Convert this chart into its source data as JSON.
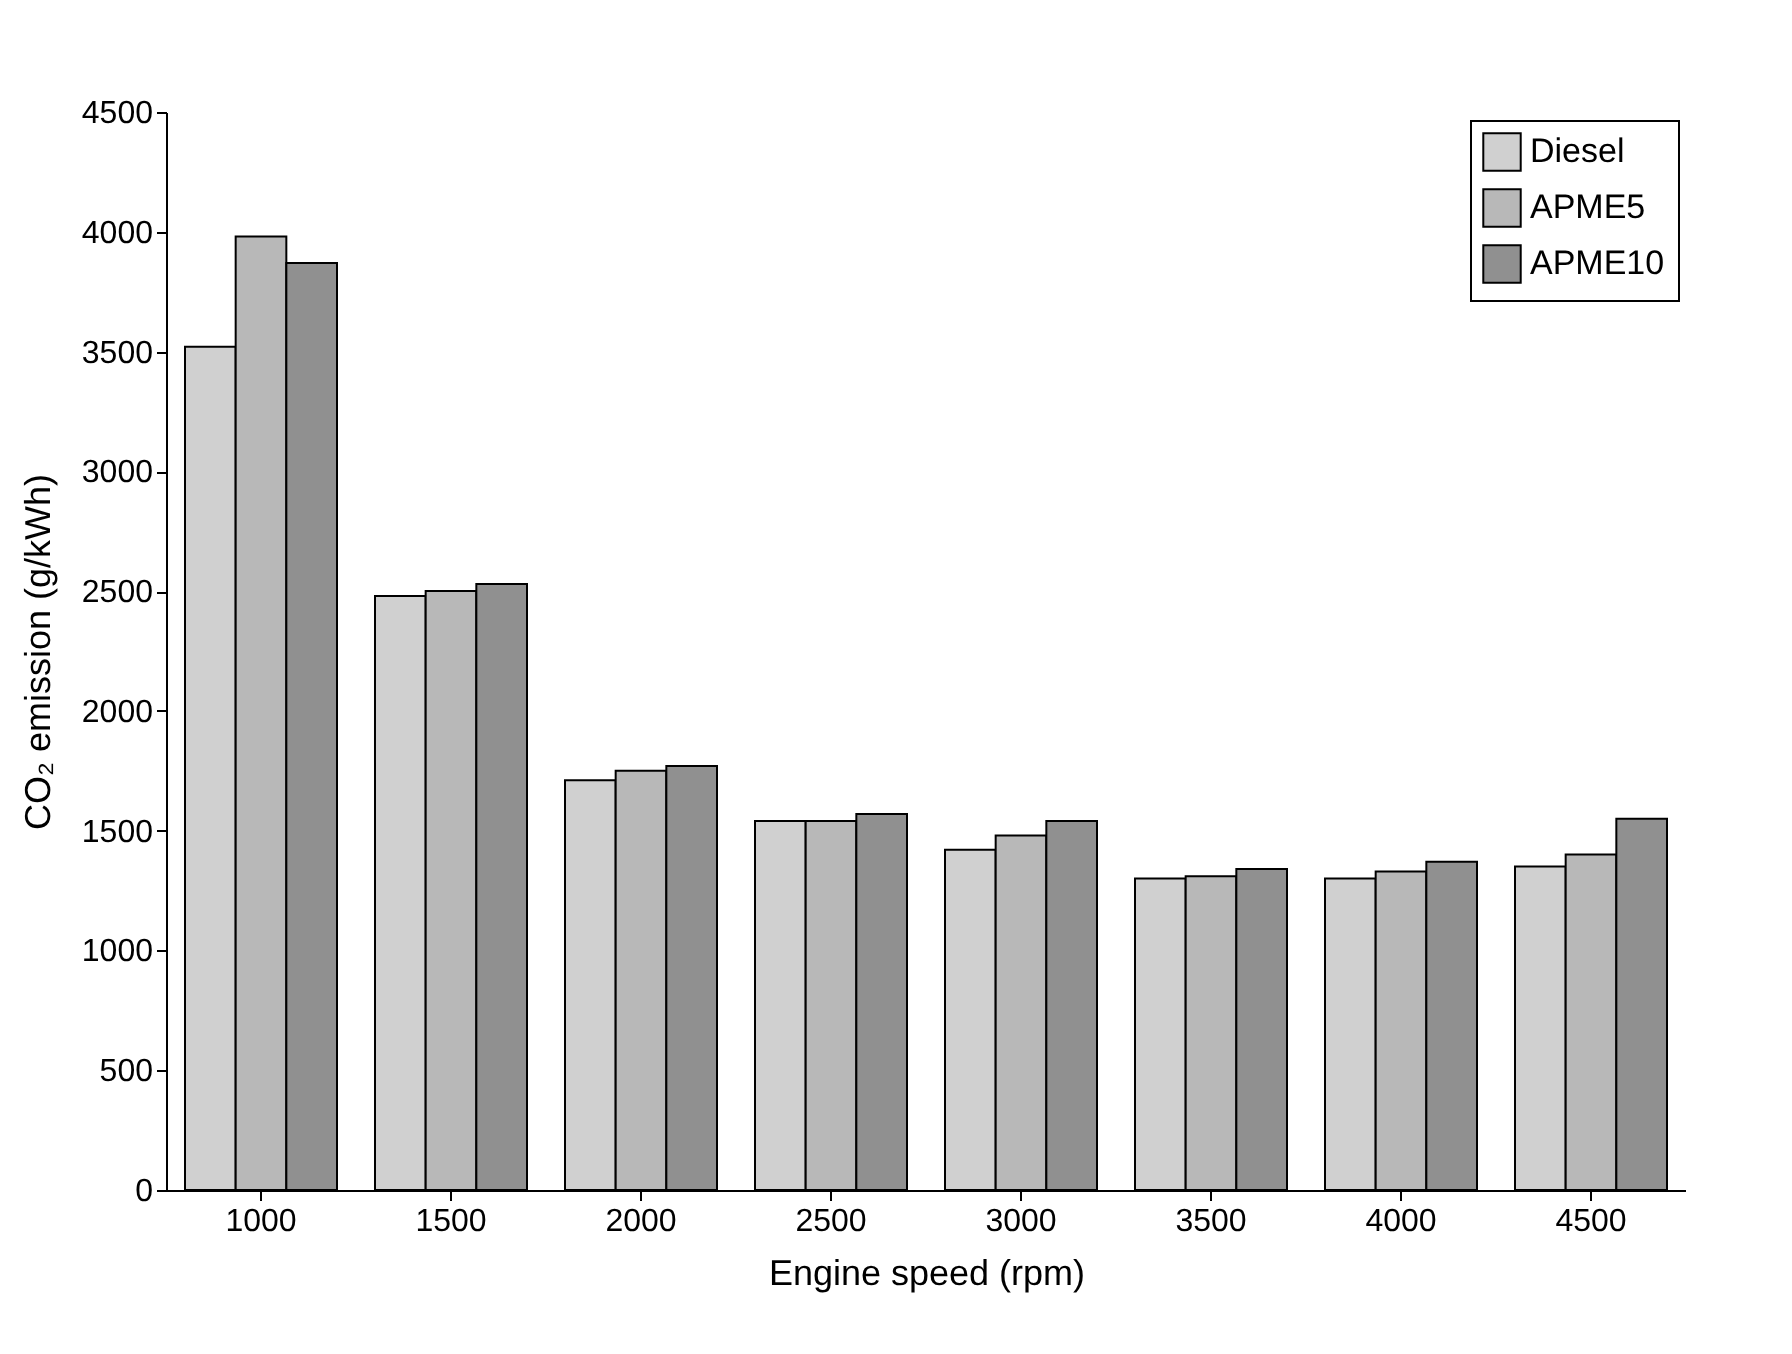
{
  "chart_data": {
    "type": "bar",
    "xlabel": "Engine speed (rpm)",
    "ylabel": "CO₂ emission (g/kWh)",
    "categories": [
      "1000",
      "1500",
      "2000",
      "2500",
      "3000",
      "3500",
      "4000",
      "4500"
    ],
    "series": [
      {
        "name": "Diesel",
        "color": "#d0d0d0",
        "values": [
          3520,
          2480,
          1710,
          1540,
          1420,
          1300,
          1300,
          1350
        ]
      },
      {
        "name": "APME5",
        "color": "#b8b8b8",
        "values": [
          3980,
          2500,
          1750,
          1540,
          1480,
          1310,
          1330,
          1400
        ]
      },
      {
        "name": "APME10",
        "color": "#909090",
        "values": [
          3870,
          2530,
          1770,
          1570,
          1540,
          1340,
          1370,
          1550
        ]
      }
    ],
    "ylim": [
      0,
      4500
    ],
    "yticks": [
      0,
      500,
      1000,
      1500,
      2000,
      2500,
      3000,
      3500,
      4000,
      4500
    ],
    "grid": false,
    "legend": "top right"
  }
}
